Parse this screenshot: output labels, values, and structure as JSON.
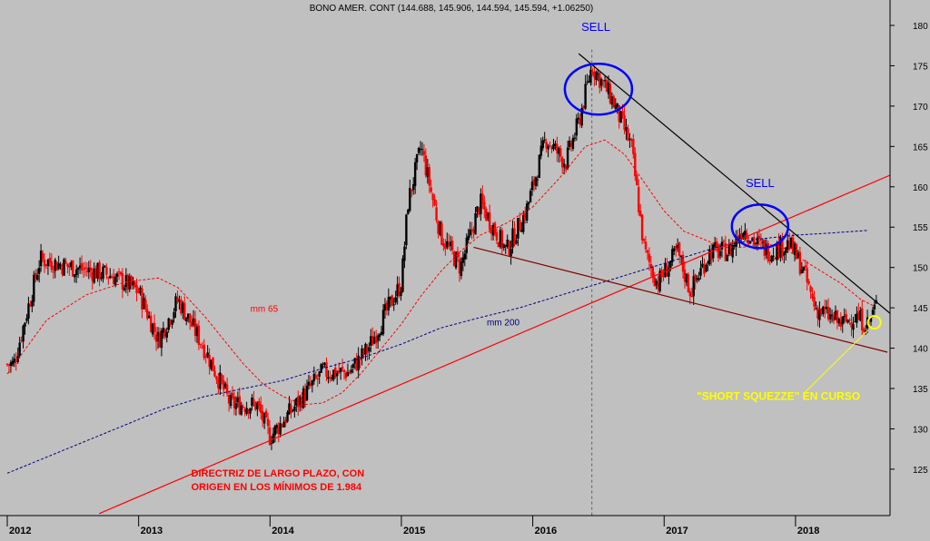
{
  "chart_data": {
    "type": "candlestick",
    "title": "BONO AMER. CONT (144.688, 145.906, 144.594, 145.594, +1.06250)",
    "x_ticks": [
      "2012",
      "2013",
      "2014",
      "2015",
      "2016",
      "2017",
      "2018"
    ],
    "y_ticks": [
      125,
      130,
      135,
      140,
      145,
      150,
      155,
      160,
      165,
      170,
      175,
      180
    ],
    "ylim": [
      119,
      182
    ],
    "xlim": [
      2012.0,
      2018.85
    ],
    "grid": false,
    "colors": {
      "background": "#c0c0c0",
      "up": "#000000",
      "down": "#ff0000",
      "mm65": "#ff0000",
      "mm200": "#000080",
      "annotation_blue": "#0000ff",
      "annotation_yellow": "#ffff00",
      "annotation_red": "#ff0000"
    },
    "series": [
      {
        "name": "mm 65",
        "style": "dashed",
        "points": [
          [
            2012.0,
            136.8
          ],
          [
            2012.3,
            143.5
          ],
          [
            2012.6,
            146.6
          ],
          [
            2012.9,
            148.2
          ],
          [
            2013.15,
            148.7
          ],
          [
            2013.3,
            147.5
          ],
          [
            2013.5,
            144.0
          ],
          [
            2013.65,
            141.0
          ],
          [
            2013.8,
            138.0
          ],
          [
            2013.95,
            135.5
          ],
          [
            2014.1,
            134.0
          ],
          [
            2014.25,
            133.0
          ],
          [
            2014.4,
            133.2
          ],
          [
            2014.55,
            134.5
          ],
          [
            2014.7,
            137.0
          ],
          [
            2014.85,
            140.0
          ],
          [
            2015.0,
            143.0
          ],
          [
            2015.15,
            146.5
          ],
          [
            2015.3,
            149.5
          ],
          [
            2015.45,
            152.0
          ],
          [
            2015.6,
            154.0
          ],
          [
            2015.8,
            155.5
          ],
          [
            2016.0,
            157.5
          ],
          [
            2016.2,
            161.0
          ],
          [
            2016.4,
            165.0
          ],
          [
            2016.55,
            165.8
          ],
          [
            2016.7,
            164.0
          ],
          [
            2016.85,
            160.5
          ],
          [
            2017.0,
            157.0
          ],
          [
            2017.15,
            154.5
          ],
          [
            2017.3,
            153.5
          ],
          [
            2017.45,
            152.5
          ],
          [
            2017.6,
            152.5
          ],
          [
            2017.75,
            153.0
          ],
          [
            2017.9,
            152.5
          ],
          [
            2018.05,
            151.0
          ],
          [
            2018.2,
            149.5
          ],
          [
            2018.35,
            148.0
          ],
          [
            2018.5,
            146.0
          ],
          [
            2018.6,
            145.2
          ]
        ]
      },
      {
        "name": "mm 200",
        "style": "dashed",
        "points": [
          [
            2012.0,
            124.5
          ],
          [
            2012.3,
            126.5
          ],
          [
            2012.6,
            128.5
          ],
          [
            2012.9,
            130.5
          ],
          [
            2013.2,
            132.5
          ],
          [
            2013.5,
            134.0
          ],
          [
            2013.8,
            135.0
          ],
          [
            2014.1,
            136.0
          ],
          [
            2014.4,
            137.5
          ],
          [
            2014.7,
            138.8
          ],
          [
            2015.0,
            140.5
          ],
          [
            2015.3,
            142.5
          ],
          [
            2015.6,
            143.8
          ],
          [
            2015.9,
            145.0
          ],
          [
            2016.2,
            146.5
          ],
          [
            2016.5,
            148.0
          ],
          [
            2016.8,
            149.5
          ],
          [
            2017.1,
            151.0
          ],
          [
            2017.4,
            152.5
          ],
          [
            2017.7,
            153.5
          ],
          [
            2018.0,
            154.0
          ],
          [
            2018.3,
            154.3
          ],
          [
            2018.55,
            154.6
          ]
        ]
      }
    ],
    "trendlines": [
      {
        "name": "long-term-support",
        "color": "#ff0000",
        "from": [
          2012.7,
          119.5
        ],
        "to": [
          2018.8,
          162.0
        ]
      },
      {
        "name": "descending-resistance",
        "color": "#000000",
        "from": [
          2016.35,
          176.5
        ],
        "to": [
          2018.78,
          143.5
        ]
      },
      {
        "name": "lower-channel",
        "color": "#800000",
        "from": [
          2015.55,
          152.5
        ],
        "to": [
          2018.7,
          139.5
        ]
      }
    ],
    "key_levels": [
      {
        "x": 2012.05,
        "y": 138
      },
      {
        "x": 2012.25,
        "y": 151
      },
      {
        "x": 2012.5,
        "y": 150
      },
      {
        "x": 2012.8,
        "y": 149
      },
      {
        "x": 2013.0,
        "y": 147
      },
      {
        "x": 2013.15,
        "y": 141
      },
      {
        "x": 2013.3,
        "y": 146
      },
      {
        "x": 2013.5,
        "y": 140
      },
      {
        "x": 2013.7,
        "y": 133
      },
      {
        "x": 2013.9,
        "y": 133
      },
      {
        "x": 2014.0,
        "y": 129
      },
      {
        "x": 2014.2,
        "y": 133
      },
      {
        "x": 2014.4,
        "y": 137
      },
      {
        "x": 2014.6,
        "y": 137
      },
      {
        "x": 2014.75,
        "y": 140
      },
      {
        "x": 2014.9,
        "y": 145
      },
      {
        "x": 2015.0,
        "y": 148
      },
      {
        "x": 2015.05,
        "y": 158
      },
      {
        "x": 2015.15,
        "y": 165
      },
      {
        "x": 2015.3,
        "y": 154
      },
      {
        "x": 2015.45,
        "y": 150
      },
      {
        "x": 2015.6,
        "y": 158
      },
      {
        "x": 2015.8,
        "y": 152
      },
      {
        "x": 2015.95,
        "y": 157
      },
      {
        "x": 2016.1,
        "y": 166
      },
      {
        "x": 2016.25,
        "y": 163
      },
      {
        "x": 2016.35,
        "y": 168
      },
      {
        "x": 2016.45,
        "y": 175
      },
      {
        "x": 2016.6,
        "y": 171
      },
      {
        "x": 2016.75,
        "y": 165
      },
      {
        "x": 2016.85,
        "y": 152
      },
      {
        "x": 2016.95,
        "y": 148
      },
      {
        "x": 2017.1,
        "y": 152
      },
      {
        "x": 2017.2,
        "y": 147
      },
      {
        "x": 2017.35,
        "y": 152
      },
      {
        "x": 2017.5,
        "y": 152
      },
      {
        "x": 2017.6,
        "y": 155
      },
      {
        "x": 2017.7,
        "y": 153
      },
      {
        "x": 2017.8,
        "y": 152
      },
      {
        "x": 2017.95,
        "y": 153
      },
      {
        "x": 2018.05,
        "y": 150
      },
      {
        "x": 2018.15,
        "y": 145
      },
      {
        "x": 2018.25,
        "y": 144
      },
      {
        "x": 2018.35,
        "y": 143
      },
      {
        "x": 2018.45,
        "y": 144
      },
      {
        "x": 2018.55,
        "y": 143
      },
      {
        "x": 2018.62,
        "y": 145.5
      }
    ],
    "annotations": [
      {
        "text": "SELL",
        "x": 2016.48,
        "y": 179.3,
        "color": "#0000ff"
      },
      {
        "text": "SELL",
        "x": 2017.73,
        "y": 160.0,
        "color": "#0000ff"
      },
      {
        "text": "mm 65",
        "x": 2013.85,
        "y": 144.5,
        "color": "#ff0000"
      },
      {
        "text": "mm 200",
        "x": 2015.65,
        "y": 142.8,
        "color": "#000080"
      },
      {
        "text": "\"SHORT SQUEZZE\" EN CURSO",
        "x": 2017.87,
        "y": 133.6,
        "color": "#ffff00"
      },
      {
        "text": "DIRECTRIZ DE LARGO PLAZO, CON",
        "x": 2013.4,
        "y": 124.1,
        "color": "#ff0000"
      },
      {
        "text": "ORIGEN EN LOS MÍNIMOS DE 1.984",
        "x": 2013.4,
        "y": 122.4,
        "color": "#ff0000"
      }
    ]
  }
}
